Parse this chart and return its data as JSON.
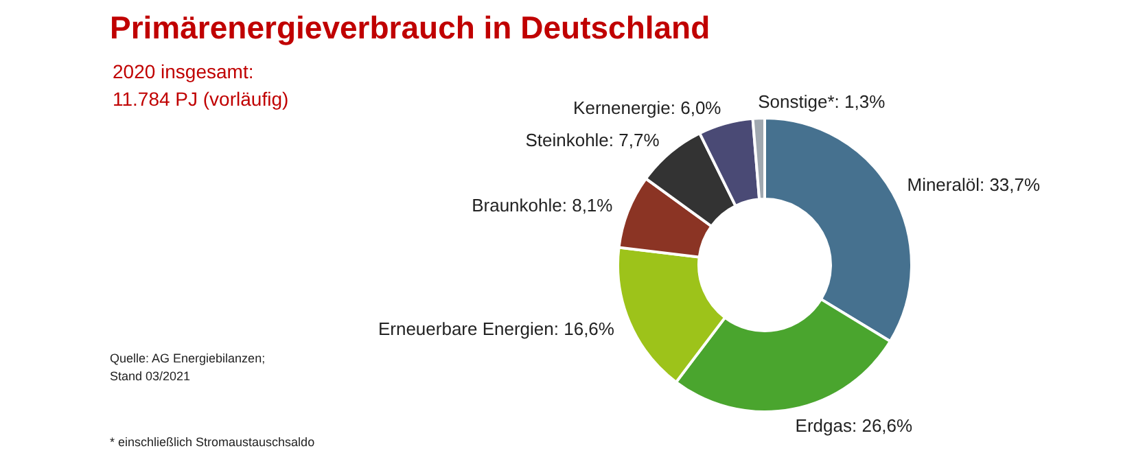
{
  "chart_data": {
    "type": "donut",
    "title": "Primärenergieverbrauch in Deutschland",
    "subtitle": "2020 insgesamt:\n11.784 PJ (vorläufig)",
    "categories": [
      "Mineralöl",
      "Erdgas",
      "Erneuerbare Energien",
      "Braunkohle",
      "Steinkohle",
      "Kernenergie",
      "Sonstige*"
    ],
    "values": [
      33.7,
      26.6,
      16.6,
      8.1,
      7.7,
      6.0,
      1.3
    ],
    "value_labels": [
      "33,7%",
      "26,6%",
      "16,6%",
      "8,1%",
      "7,7%",
      "6,0%",
      "1,3%"
    ],
    "colors": [
      "#46718f",
      "#4aa52e",
      "#9dc31a",
      "#8b3424",
      "#333333",
      "#4a4a75",
      "#a0a8b0"
    ],
    "annotations": [
      "Quelle: AG Energiebilanzen;\nStand 03/2021",
      "* einschließlich Stromaustauschsaldo"
    ],
    "legend": false
  }
}
